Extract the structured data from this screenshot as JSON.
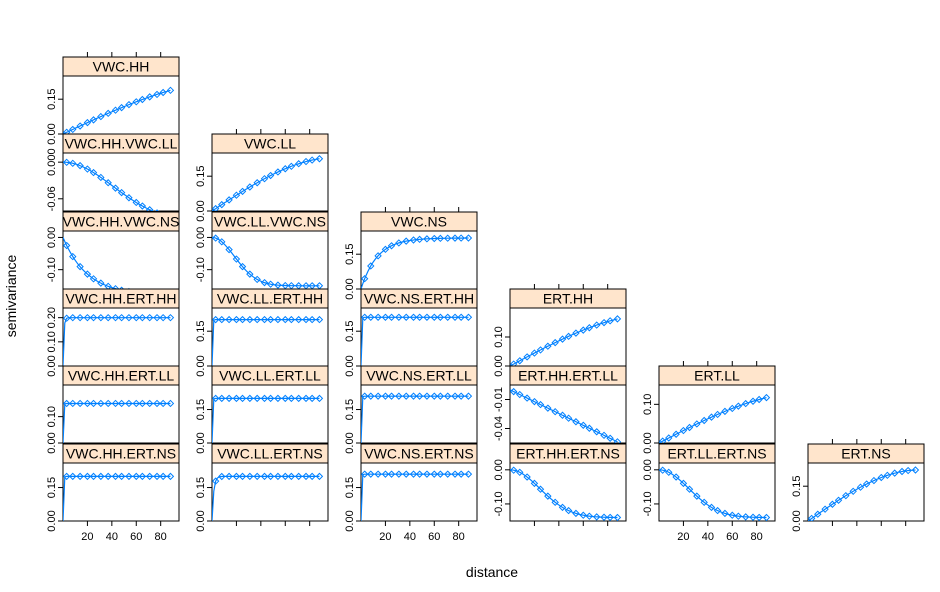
{
  "chart_data": {
    "type": "scatter",
    "xlabel": "distance",
    "ylabel": "semivariance",
    "x_ticks": [
      20,
      40,
      60,
      80
    ],
    "x_tick_labels": [
      "20",
      "40",
      "60",
      "80"
    ],
    "xlim": [
      0,
      95
    ],
    "lag_distances": [
      3,
      8,
      14,
      20,
      25,
      31,
      37,
      43,
      48,
      54,
      60,
      65,
      71,
      77,
      82,
      88
    ],
    "colors": {
      "points": "#0080ff",
      "line": "#0080ff",
      "strip": "#ffe5cc"
    },
    "panels": [
      {
        "title": "VWC.HH",
        "row": 0,
        "col": 0,
        "ylim": [
          0,
          0.25
        ],
        "y_ticks": [
          0,
          0.15
        ],
        "y_tick_labels": [
          "0.00",
          "0.15"
        ],
        "model": "sph",
        "sill": 0.23,
        "range": 140,
        "nugget": 0,
        "sign": 1
      },
      {
        "title": "VWC.HH.VWC.LL",
        "row": 1,
        "col": 0,
        "ylim": [
          -0.08,
          0.015
        ],
        "y_ticks": [
          0,
          -0.06
        ],
        "y_tick_labels": [
          "0.000",
          "-0.06"
        ],
        "model": "gau",
        "sill": 0.1,
        "range": 100,
        "nugget": 0,
        "sign": -1
      },
      {
        "title": "VWC.LL",
        "row": 1,
        "col": 1,
        "ylim": [
          0,
          0.25
        ],
        "y_ticks": [
          0,
          0.15
        ],
        "y_tick_labels": [
          "0.00",
          "0.15"
        ],
        "model": "sph",
        "sill": 0.23,
        "range": 100,
        "nugget": 0,
        "sign": 1
      },
      {
        "title": "VWC.HH.VWC.NS",
        "row": 2,
        "col": 0,
        "ylim": [
          -0.16,
          0.02
        ],
        "y_ticks": [
          0,
          -0.1
        ],
        "y_tick_labels": [
          "0.00",
          "-0.10"
        ],
        "model": "exp",
        "sill": 0.18,
        "range": 60,
        "nugget": 0,
        "sign": -1
      },
      {
        "title": "VWC.LL.VWC.NS",
        "row": 2,
        "col": 1,
        "ylim": [
          -0.16,
          0.02
        ],
        "y_ticks": [
          0,
          -0.1
        ],
        "y_tick_labels": [
          "0.00",
          "-0.10"
        ],
        "model": "gau",
        "sill": 0.15,
        "range": 45,
        "nugget": 0,
        "sign": -1
      },
      {
        "title": "VWC.NS",
        "row": 2,
        "col": 2,
        "ylim": [
          0,
          0.25
        ],
        "y_ticks": [
          0,
          0.15
        ],
        "y_tick_labels": [
          "0.00",
          "0.15"
        ],
        "model": "exp",
        "sill": 0.22,
        "range": 40,
        "nugget": 0,
        "sign": 1
      },
      {
        "title": "VWC.HH.ERT.HH",
        "row": 3,
        "col": 0,
        "ylim": [
          0,
          0.24
        ],
        "y_ticks": [
          0,
          0.1,
          0.2
        ],
        "y_tick_labels": [
          "0.00",
          "0.10",
          "0.20"
        ],
        "model": "exp",
        "sill": 0.2,
        "range": 2,
        "nugget": 0,
        "sign": 1
      },
      {
        "title": "VWC.LL.ERT.HH",
        "row": 3,
        "col": 1,
        "ylim": [
          0,
          0.25
        ],
        "y_ticks": [
          0,
          0.15
        ],
        "y_tick_labels": [
          "0.00",
          "0.15"
        ],
        "model": "exp",
        "sill": 0.2,
        "range": 1,
        "nugget": 0,
        "sign": 1
      },
      {
        "title": "VWC.NS.ERT.HH",
        "row": 3,
        "col": 2,
        "ylim": [
          0,
          0.25
        ],
        "y_ticks": [
          0,
          0.15
        ],
        "y_tick_labels": [
          "0.00",
          "0.15"
        ],
        "model": "exp",
        "sill": 0.21,
        "range": 1,
        "nugget": 0,
        "sign": 1
      },
      {
        "title": "ERT.HH",
        "row": 3,
        "col": 3,
        "ylim": [
          0,
          0.2
        ],
        "y_ticks": [
          0,
          0.1
        ],
        "y_tick_labels": [
          "0.00",
          "0.10"
        ],
        "model": "sph",
        "sill": 0.18,
        "range": 120,
        "nugget": 0,
        "sign": 1
      },
      {
        "title": "VWC.HH.ERT.LL",
        "row": 4,
        "col": 0,
        "ylim": [
          0,
          0.22
        ],
        "y_ticks": [
          0,
          0.1
        ],
        "y_tick_labels": [
          "0.00",
          "0.10"
        ],
        "model": "exp",
        "sill": 0.15,
        "range": 1,
        "nugget": 0,
        "sign": 1
      },
      {
        "title": "VWC.LL.ERT.LL",
        "row": 4,
        "col": 1,
        "ylim": [
          0,
          0.26
        ],
        "y_ticks": [
          0,
          0.15
        ],
        "y_tick_labels": [
          "0.00",
          "0.15"
        ],
        "model": "exp",
        "sill": 0.2,
        "range": 1,
        "nugget": 0,
        "sign": 1
      },
      {
        "title": "VWC.NS.ERT.LL",
        "row": 4,
        "col": 2,
        "ylim": [
          0,
          0.26
        ],
        "y_ticks": [
          0,
          0.15
        ],
        "y_tick_labels": [
          "0.00",
          "0.15"
        ],
        "model": "exp",
        "sill": 0.21,
        "range": 1,
        "nugget": 0,
        "sign": 1
      },
      {
        "title": "ERT.HH.ERT.LL",
        "row": 4,
        "col": 3,
        "ylim": [
          -0.055,
          0.005
        ],
        "y_ticks": [
          -0.01,
          -0.04
        ],
        "y_tick_labels": [
          "-0.01",
          "-0.04"
        ],
        "model": "linear",
        "sill": 0.055,
        "range": 90,
        "nugget": 0,
        "sign": -1
      },
      {
        "title": "ERT.LL",
        "row": 4,
        "col": 4,
        "ylim": [
          0,
          0.15
        ],
        "y_ticks": [
          0,
          0.1
        ],
        "y_tick_labels": [
          "0.00",
          "0.10"
        ],
        "model": "sph",
        "sill": 0.13,
        "range": 120,
        "nugget": 0,
        "sign": 1
      },
      {
        "title": "VWC.HH.ERT.NS",
        "row": 5,
        "col": 0,
        "ylim": [
          0,
          0.26
        ],
        "y_ticks": [
          0,
          0.15
        ],
        "y_tick_labels": [
          "0.00",
          "0.15"
        ],
        "model": "exp",
        "sill": 0.2,
        "range": 1,
        "nugget": 0,
        "sign": 1
      },
      {
        "title": "VWC.LL.ERT.NS",
        "row": 5,
        "col": 1,
        "ylim": [
          0,
          0.26
        ],
        "y_ticks": [
          0,
          0.15
        ],
        "y_tick_labels": [
          "0.00",
          "0.15"
        ],
        "model": "exp",
        "sill": 0.2,
        "range": 4,
        "nugget": 0,
        "sign": 1
      },
      {
        "title": "VWC.NS.ERT.NS",
        "row": 5,
        "col": 2,
        "ylim": [
          0,
          0.26
        ],
        "y_ticks": [
          0,
          0.15
        ],
        "y_tick_labels": [
          "0.00",
          "0.15"
        ],
        "model": "exp",
        "sill": 0.21,
        "range": 1,
        "nugget": 0,
        "sign": 1
      },
      {
        "title": "ERT.HH.ERT.NS",
        "row": 5,
        "col": 3,
        "ylim": [
          -0.15,
          0.02
        ],
        "y_ticks": [
          0,
          -0.1
        ],
        "y_tick_labels": [
          "0.00",
          "-0.10"
        ],
        "model": "gau",
        "sill": 0.14,
        "range": 60,
        "nugget": 0,
        "sign": -1
      },
      {
        "title": "ERT.LL.ERT.NS",
        "row": 5,
        "col": 4,
        "ylim": [
          -0.15,
          0.02
        ],
        "y_ticks": [
          0,
          -0.1
        ],
        "y_tick_labels": [
          "0.00",
          "-0.10"
        ],
        "model": "gau",
        "sill": 0.14,
        "range": 60,
        "nugget": 0,
        "sign": -1
      },
      {
        "title": "ERT.NS",
        "row": 5,
        "col": 5,
        "ylim": [
          0,
          0.25
        ],
        "y_ticks": [
          0,
          0.15
        ],
        "y_tick_labels": [
          "0.00",
          "0.15"
        ],
        "model": "sph",
        "sill": 0.22,
        "range": 90,
        "nugget": 0,
        "sign": 1
      }
    ]
  }
}
